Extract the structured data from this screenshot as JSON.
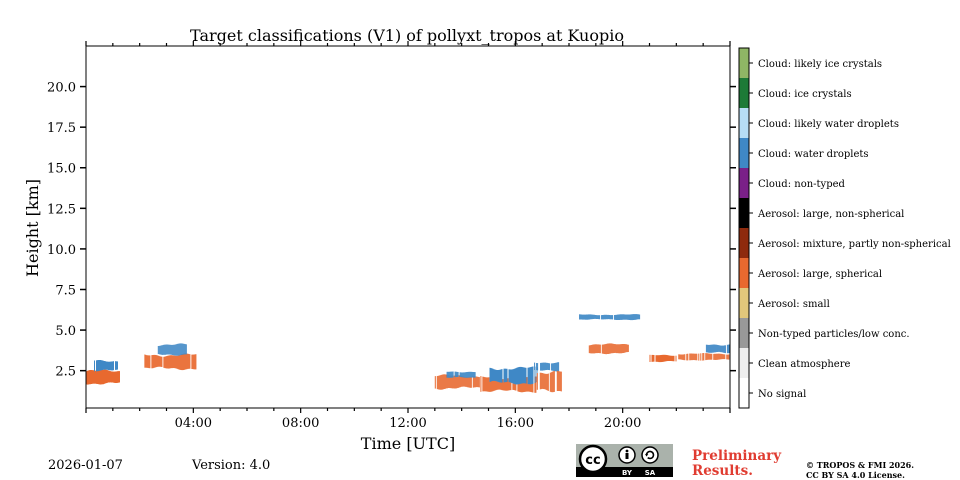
{
  "chart_data": {
    "type": "heatmap",
    "title": "Target classifications (V1) of pollyxt_tropos at Kuopio",
    "xlabel": "Time [UTC]",
    "ylabel": "Height [km]",
    "xlim_hours": [
      0,
      24
    ],
    "ylim_km": [
      0.2,
      22.5
    ],
    "x_ticks": [
      {
        "value": 4,
        "label": "04:00"
      },
      {
        "value": 8,
        "label": "08:00"
      },
      {
        "value": 12,
        "label": "12:00"
      },
      {
        "value": 16,
        "label": "16:00"
      },
      {
        "value": 20,
        "label": "20:00"
      }
    ],
    "y_ticks": [
      {
        "value": 2.5,
        "label": "2.5"
      },
      {
        "value": 5.0,
        "label": "5.0"
      },
      {
        "value": 7.5,
        "label": "7.5"
      },
      {
        "value": 10.0,
        "label": "10.0"
      },
      {
        "value": 12.5,
        "label": "12.5"
      },
      {
        "value": 15.0,
        "label": "15.0"
      },
      {
        "value": 17.5,
        "label": "17.5"
      },
      {
        "value": 20.0,
        "label": "20.0"
      }
    ],
    "legend": [
      {
        "label": "Cloud: likely ice crystals",
        "color": "#8fb665"
      },
      {
        "label": "Cloud: ice crystals",
        "color": "#1d7a37"
      },
      {
        "label": "Cloud: likely water droplets",
        "color": "#b7ddf5"
      },
      {
        "label": "Cloud: water droplets",
        "color": "#3f88c6"
      },
      {
        "label": "Cloud: non-typed",
        "color": "#7a2088"
      },
      {
        "label": "Aerosol: large, non-spherical",
        "color": "#000000"
      },
      {
        "label": "Aerosol: mixture, partly non-spherical",
        "color": "#8e2a0d"
      },
      {
        "label": "Aerosol: large, spherical",
        "color": "#e8692f"
      },
      {
        "label": "Aerosol: small",
        "color": "#e2c77b"
      },
      {
        "label": "Non-typed particles/low conc.",
        "color": "#999999"
      },
      {
        "label": "Clean atmosphere",
        "color": "#eeeeee"
      },
      {
        "label": "No signal",
        "color": "#ffffff"
      }
    ],
    "features": [
      {
        "class": "Aerosol: large, spherical",
        "t0": 0.0,
        "t1": 1.3,
        "h0": 1.6,
        "h1": 2.6
      },
      {
        "class": "Cloud: water droplets",
        "t0": 0.3,
        "t1": 1.3,
        "h0": 2.4,
        "h1": 3.2
      },
      {
        "class": "Aerosol: large, spherical",
        "t0": 2.1,
        "t1": 4.1,
        "h0": 2.5,
        "h1": 3.6
      },
      {
        "class": "Cloud: water droplets",
        "t0": 2.6,
        "t1": 3.8,
        "h0": 3.4,
        "h1": 4.2
      },
      {
        "class": "Aerosol: large, spherical",
        "t0": 13.0,
        "t1": 14.7,
        "h0": 1.3,
        "h1": 2.3
      },
      {
        "class": "Cloud: water droplets",
        "t0": 13.4,
        "t1": 14.5,
        "h0": 2.0,
        "h1": 2.5
      },
      {
        "class": "Aerosol: large, spherical",
        "t0": 14.7,
        "t1": 16.8,
        "h0": 1.1,
        "h1": 2.2
      },
      {
        "class": "Cloud: water droplets",
        "t0": 15.0,
        "t1": 16.8,
        "h0": 1.6,
        "h1": 2.8
      },
      {
        "class": "Cloud: water droplets",
        "t0": 16.7,
        "t1": 17.7,
        "h0": 2.4,
        "h1": 3.1
      },
      {
        "class": "Aerosol: large, spherical",
        "t0": 16.8,
        "t1": 17.8,
        "h0": 1.1,
        "h1": 2.6
      },
      {
        "class": "Aerosol: large, spherical",
        "t0": 18.7,
        "t1": 20.3,
        "h0": 3.5,
        "h1": 4.2
      },
      {
        "class": "Aerosol: large, spherical",
        "t0": 21.0,
        "t1": 22.0,
        "h0": 3.0,
        "h1": 3.5
      },
      {
        "class": "Aerosol: large, spherical",
        "t0": 22.0,
        "t1": 24.0,
        "h0": 3.1,
        "h1": 3.6
      },
      {
        "class": "Cloud: water droplets",
        "t0": 23.1,
        "t1": 24.0,
        "h0": 3.5,
        "h1": 4.2
      },
      {
        "class": "Cloud: water droplets",
        "t0": 18.3,
        "t1": 20.7,
        "h0": 5.6,
        "h1": 6.0
      }
    ]
  },
  "footer": {
    "date": "2026-01-07",
    "version": "Version: 4.0",
    "preliminary_line1": "Preliminary",
    "preliminary_line2": "Results.",
    "copyright_line1": "© TROPOS & FMI 2026.",
    "copyright_line2": "CC BY SA 4.0 License."
  },
  "license_badge": {
    "cc": "cc",
    "by": "BY",
    "sa": "SA"
  }
}
